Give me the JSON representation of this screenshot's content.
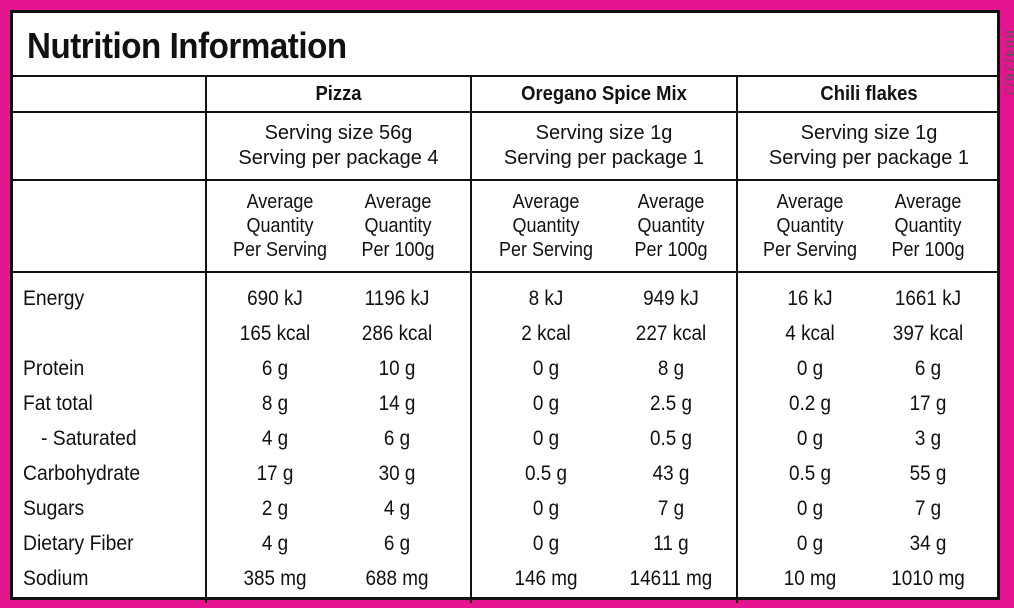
{
  "title": "Nutrition Information",
  "side_code": "B04/26/2",
  "products": [
    {
      "name": "Pizza",
      "serving_size": "Serving size 56g",
      "servings_per_package": "Serving per package 4"
    },
    {
      "name": "Oregano Spice Mix",
      "serving_size": "Serving size 1g",
      "servings_per_package": "Serving per package 1"
    },
    {
      "name": "Chili flakes",
      "serving_size": "Serving size 1g",
      "servings_per_package": "Serving per package 1"
    }
  ],
  "column_headers": {
    "per_serving": [
      "Average",
      "Quantity",
      "Per Serving"
    ],
    "per_100g": [
      "Average",
      "Quantity",
      "Per 100g"
    ]
  },
  "rows": [
    {
      "label": "Energy",
      "values": [
        "690 kJ",
        "1196 kJ",
        "8 kJ",
        "949 kJ",
        "16 kJ",
        "1661 kJ"
      ]
    },
    {
      "label": "",
      "values": [
        "165 kcal",
        "286 kcal",
        "2 kcal",
        "227 kcal",
        "4 kcal",
        "397 kcal"
      ]
    },
    {
      "label": "Protein",
      "values": [
        "6 g",
        "10 g",
        "0 g",
        "8 g",
        "0 g",
        "6 g"
      ]
    },
    {
      "label": "Fat total",
      "values": [
        "8 g",
        "14 g",
        "0 g",
        "2.5 g",
        "0.2 g",
        "17 g"
      ]
    },
    {
      "label": "- Saturated",
      "values": [
        "4 g",
        "6 g",
        "0 g",
        "0.5 g",
        "0 g",
        "3 g"
      ]
    },
    {
      "label": "Carbohydrate",
      "values": [
        "17 g",
        "30 g",
        "0.5 g",
        "43 g",
        "0.5 g",
        "55 g"
      ]
    },
    {
      "label": "Sugars",
      "values": [
        "2 g",
        "4 g",
        "0 g",
        "7 g",
        "0 g",
        "7 g"
      ]
    },
    {
      "label": "Dietary Fiber",
      "values": [
        "4 g",
        "6 g",
        "0 g",
        "11 g",
        "0 g",
        "34 g"
      ]
    },
    {
      "label": "Sodium",
      "values": [
        "385 mg",
        "688 mg",
        "146 mg",
        "14611 mg",
        "10 mg",
        "1010 mg"
      ]
    }
  ],
  "colors": {
    "border": "#e5158f",
    "text": "#111111",
    "panel": "#ffffff"
  }
}
